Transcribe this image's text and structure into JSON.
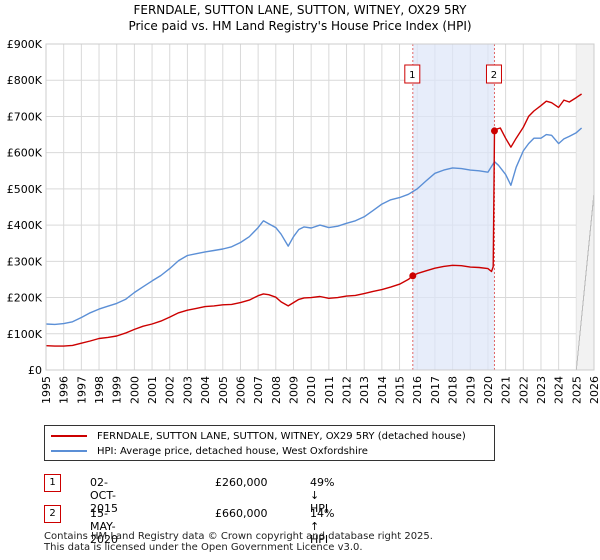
{
  "chart_data": {
    "type": "line",
    "title": "FERNDALE, SUTTON LANE, SUTTON, WITNEY, OX29 5RY",
    "subtitle": "Price paid vs. HM Land Registry's House Price Index (HPI)",
    "xlim": [
      1995,
      2026
    ],
    "ylim": [
      0,
      900000
    ],
    "x_ticks": [
      "1995",
      "1996",
      "1997",
      "1998",
      "1999",
      "2000",
      "2001",
      "2002",
      "2003",
      "2004",
      "2005",
      "2006",
      "2007",
      "2008",
      "2009",
      "2010",
      "2011",
      "2012",
      "2013",
      "2014",
      "2015",
      "2016",
      "2017",
      "2018",
      "2019",
      "2020",
      "2021",
      "2022",
      "2023",
      "2024",
      "2025",
      "2026"
    ],
    "y_ticks": [
      {
        "value": 0,
        "label": "£0"
      },
      {
        "value": 100000,
        "label": "£100K"
      },
      {
        "value": 200000,
        "label": "£200K"
      },
      {
        "value": 300000,
        "label": "£300K"
      },
      {
        "value": 400000,
        "label": "£400K"
      },
      {
        "value": 500000,
        "label": "£500K"
      },
      {
        "value": 600000,
        "label": "£600K"
      },
      {
        "value": 700000,
        "label": "£700K"
      },
      {
        "value": 800000,
        "label": "£800K"
      },
      {
        "value": 900000,
        "label": "£900K"
      }
    ],
    "grid": true,
    "shaded_period": [
      2015.75,
      2020.37
    ],
    "projection_start": 2025.0,
    "series": [
      {
        "name": "FERNDALE, SUTTON LANE, SUTTON, WITNEY, OX29 5RY (detached house)",
        "color": "#cc0000",
        "x": [
          1995.0,
          1995.5,
          1996.0,
          1996.5,
          1997.0,
          1997.5,
          1998.0,
          1998.5,
          1999.0,
          1999.5,
          2000.0,
          2000.5,
          2001.0,
          2001.5,
          2002.0,
          2002.5,
          2003.0,
          2003.5,
          2004.0,
          2004.5,
          2005.0,
          2005.5,
          2006.0,
          2006.5,
          2007.0,
          2007.3,
          2007.6,
          2008.0,
          2008.3,
          2008.7,
          2009.0,
          2009.3,
          2009.6,
          2010.0,
          2010.5,
          2011.0,
          2011.5,
          2012.0,
          2012.5,
          2013.0,
          2013.5,
          2014.0,
          2014.5,
          2015.0,
          2015.5,
          2015.75,
          2016.0,
          2016.5,
          2017.0,
          2017.5,
          2018.0,
          2018.5,
          2019.0,
          2019.5,
          2020.0,
          2020.2,
          2020.3,
          2020.37,
          2020.5,
          2020.7,
          2021.0,
          2021.3,
          2021.6,
          2022.0,
          2022.3,
          2022.6,
          2023.0,
          2023.3,
          2023.6,
          2024.0,
          2024.3,
          2024.6,
          2025.0,
          2025.3
        ],
        "values": [
          67000,
          66000,
          66000,
          68000,
          74000,
          80000,
          87000,
          90000,
          94000,
          102000,
          112000,
          121000,
          127000,
          135000,
          146000,
          158000,
          165000,
          170000,
          175000,
          177000,
          180000,
          181000,
          186000,
          193000,
          205000,
          210000,
          208000,
          201000,
          188000,
          177000,
          186000,
          195000,
          199000,
          200000,
          203000,
          198000,
          200000,
          204000,
          206000,
          211000,
          217000,
          222000,
          229000,
          237000,
          250000,
          260000,
          266000,
          274000,
          281000,
          286000,
          289000,
          288000,
          284000,
          283000,
          280000,
          272000,
          285000,
          660000,
          665000,
          668000,
          640000,
          615000,
          640000,
          670000,
          700000,
          715000,
          730000,
          742000,
          738000,
          725000,
          745000,
          740000,
          752000,
          762000
        ]
      },
      {
        "name": "HPI: Average price, detached house, West Oxfordshire",
        "color": "#5b8fd6",
        "x": [
          1995.0,
          1995.5,
          1996.0,
          1996.5,
          1997.0,
          1997.5,
          1998.0,
          1998.5,
          1999.0,
          1999.5,
          2000.0,
          2000.5,
          2001.0,
          2001.5,
          2002.0,
          2002.5,
          2003.0,
          2003.5,
          2004.0,
          2004.5,
          2005.0,
          2005.5,
          2006.0,
          2006.5,
          2007.0,
          2007.3,
          2007.6,
          2008.0,
          2008.3,
          2008.7,
          2009.0,
          2009.3,
          2009.6,
          2010.0,
          2010.5,
          2011.0,
          2011.5,
          2012.0,
          2012.5,
          2013.0,
          2013.5,
          2014.0,
          2014.5,
          2015.0,
          2015.5,
          2016.0,
          2016.5,
          2017.0,
          2017.5,
          2018.0,
          2018.5,
          2019.0,
          2019.5,
          2020.0,
          2020.37,
          2020.6,
          2021.0,
          2021.3,
          2021.6,
          2022.0,
          2022.3,
          2022.6,
          2023.0,
          2023.3,
          2023.6,
          2024.0,
          2024.3,
          2024.6,
          2025.0,
          2025.3
        ],
        "values": [
          127000,
          126000,
          128000,
          133000,
          145000,
          158000,
          168000,
          176000,
          184000,
          195000,
          214000,
          230000,
          246000,
          261000,
          280000,
          302000,
          316000,
          321000,
          326000,
          330000,
          334000,
          340000,
          352000,
          368000,
          393000,
          412000,
          404000,
          393000,
          375000,
          342000,
          368000,
          388000,
          395000,
          392000,
          400000,
          393000,
          397000,
          405000,
          412000,
          423000,
          440000,
          458000,
          470000,
          476000,
          485000,
          500000,
          522000,
          543000,
          552000,
          558000,
          556000,
          552000,
          550000,
          546000,
          575000,
          565000,
          540000,
          510000,
          560000,
          605000,
          625000,
          640000,
          640000,
          650000,
          648000,
          625000,
          638000,
          645000,
          655000,
          668000
        ]
      }
    ],
    "markers": [
      {
        "id": "1",
        "x": 2015.75,
        "value": 260000,
        "date": "02-OCT-2015",
        "price": "£260,000",
        "hpi": "49% ↓ HPI"
      },
      {
        "id": "2",
        "x": 2020.37,
        "value": 660000,
        "date": "15-MAY-2020",
        "price": "£660,000",
        "hpi": "14% ↑ HPI"
      }
    ]
  },
  "legend": {
    "line1": "FERNDALE, SUTTON LANE, SUTTON, WITNEY, OX29 5RY (detached house)",
    "line2": "HPI: Average price, detached house, West Oxfordshire"
  },
  "footer": {
    "line1": "Contains HM Land Registry data © Crown copyright and database right 2025.",
    "line2": "This data is licensed under the Open Government Licence v3.0."
  }
}
